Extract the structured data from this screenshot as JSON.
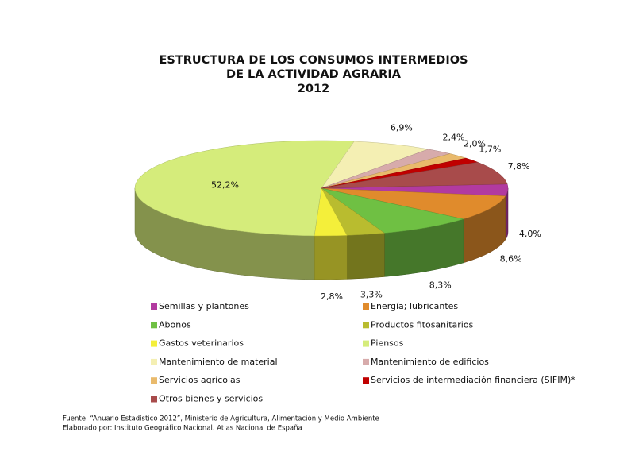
{
  "chart_data": {
    "type": "pie3d",
    "title": [
      "ESTRUCTURA DE LOS CONSUMOS INTERMEDIOS",
      "DE LA ACTIVIDAD AGRARIA",
      "2012"
    ],
    "categories": [
      "Semillas y plantones",
      "Energía; lubricantes",
      "Abonos",
      "Productos fitosanitarios",
      "Gastos veterinarios",
      "Piensos",
      "Mantenimiento de material",
      "Mantenimiento de edificios",
      "Servicios agrícolas",
      "Servicios de intermediación financiera (SIFIM)*",
      "Otros bienes y servicios"
    ],
    "values": [
      4.0,
      8.6,
      8.3,
      3.3,
      2.8,
      52.2,
      6.9,
      2.4,
      2.0,
      1.7,
      7.8
    ],
    "value_labels": [
      "4,0%",
      "8,6%",
      "8,3%",
      "3,3%",
      "2,8%",
      "52,2%",
      "6,9%",
      "2,4%",
      "2,0%",
      "1,7%",
      "7,8%"
    ],
    "colors": [
      "#b23aa0",
      "#e08b2c",
      "#6fc043",
      "#b9bc2f",
      "#f4ef3a",
      "#d5ec7b",
      "#f4efb3",
      "#d7abab",
      "#e9ba6c",
      "#c00000",
      "#a84b4b"
    ],
    "source": [
      "Fuente: “Anuario Estadístico 2012”, Ministerio de Agricultura, Alimentación y Medio Ambiente",
      "Elaborado por: Instituto Geográfico Nacional. Atlas Nacional de España"
    ]
  }
}
